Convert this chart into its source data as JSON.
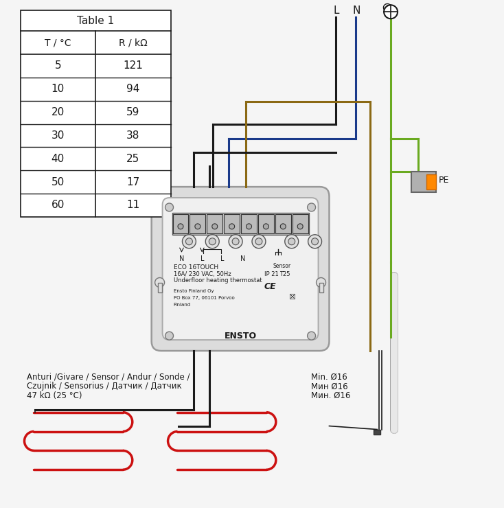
{
  "bg_color": "#f5f5f5",
  "table_title": "Table 1",
  "table_col1_header": "T / °C",
  "table_col2_header": "R / kΩ",
  "table_temps": [
    5,
    10,
    20,
    30,
    40,
    50,
    60
  ],
  "table_resist": [
    121,
    94,
    59,
    38,
    25,
    17,
    11
  ],
  "sensor_label_line1": "Anturi /Givare / Sensor / Andur / Sonde /",
  "sensor_label_line2": "Czujnik / Sensorius / Датчик / Датчик",
  "sensor_label_line3": "47 kΩ (25 °C)",
  "min_label1": "Min. Ø16",
  "min_label2": "Мин Ø16",
  "min_label3": "Мин. Ø16",
  "pe_label": "PE",
  "device_line1": "ECO 16TOUCH",
  "device_line2": "16A/ 230 VAC, 50Hz",
  "device_line3": "Underfloor heating thermostat",
  "device_line4": "Ensto Finland Oy",
  "device_line5": "PO Box 77, 06101 Porvoo",
  "device_line6": "Finland",
  "device_line7": "ENSTO",
  "labels_NLN": [
    "N",
    "L",
    "L",
    "N"
  ],
  "label_sensor": "Sensor",
  "label_ip": "IP 21",
  "label_t": "T25",
  "color_black": "#1a1a1a",
  "color_blue": "#1a3a8a",
  "color_brown": "#8B6914",
  "color_green_yellow": "#6aaa20",
  "color_red": "#cc1111",
  "color_gray": "#888888",
  "color_white": "#ffffff",
  "color_table_border": "#333333"
}
